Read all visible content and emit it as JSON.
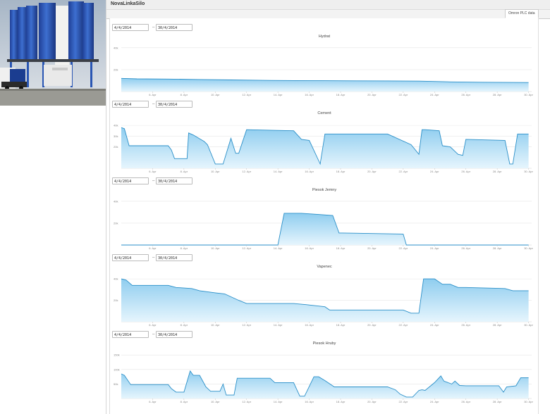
{
  "header": {
    "title": "NovaLinkaSilo"
  },
  "tabs": [
    {
      "label": "Omron PLC data"
    }
  ],
  "photo": {
    "icon": "silo-photo"
  },
  "colors": {
    "line": "#2a8fc8",
    "fill_top": "#8fcdef",
    "fill_bottom": "#e6f5fd",
    "grid": "#e6e6e6"
  },
  "charts": [
    {
      "title": "Hydrat",
      "range": {
        "from": "4/4/2014",
        "to": "30/4/2014"
      }
    },
    {
      "title": "Cement",
      "range": {
        "from": "4/4/2014",
        "to": "30/4/2014"
      }
    },
    {
      "title": "Piesok Jemny",
      "range": {
        "from": "4/4/2014",
        "to": "30/4/2014"
      }
    },
    {
      "title": "Vapenec",
      "range": {
        "from": "4/4/2014",
        "to": "30/4/2014"
      }
    },
    {
      "title": "Piesok Hruby",
      "range": {
        "from": "4/4/2014",
        "to": "30/4/2014"
      }
    }
  ],
  "chart_data": [
    {
      "type": "area",
      "title": "Hydrat",
      "x_ticks": [
        "6. Apr",
        "8. Apr",
        "10. Apr",
        "12. Apr",
        "14. Apr",
        "16. Apr",
        "18. Apr",
        "20. Apr",
        "22. Apr",
        "24. Apr",
        "26. Apr",
        "28. Apr",
        "30. Apr"
      ],
      "y_ticks": [
        "40k",
        "20k"
      ],
      "ylim": [
        0,
        45000
      ],
      "xlim": [
        4,
        30.2
      ],
      "series": [
        {
          "x": [
            4,
            5,
            7,
            9,
            11,
            13,
            15,
            17,
            19,
            21,
            23,
            24,
            25,
            27,
            29,
            30
          ],
          "y": [
            12000,
            11600,
            11400,
            11000,
            10600,
            10200,
            10000,
            9900,
            9800,
            9700,
            9500,
            9200,
            8800,
            8500,
            8300,
            8200
          ]
        }
      ]
    },
    {
      "type": "area",
      "title": "Cement",
      "x_ticks": [
        "6. Apr",
        "8. Apr",
        "10. Apr",
        "12. Apr",
        "14. Apr",
        "16. Apr",
        "18. Apr",
        "20. Apr",
        "22. Apr",
        "24. Apr",
        "26. Apr",
        "28. Apr",
        "30. Apr"
      ],
      "y_ticks": [
        "40k",
        "30k",
        "20k"
      ],
      "ylim": [
        0,
        46000
      ],
      "xlim": [
        4,
        30.2
      ],
      "series": [
        {
          "x": [
            4,
            4.2,
            4.5,
            7,
            7.2,
            7.4,
            8.2,
            8.3,
            8.6,
            9.3,
            9.5,
            10,
            10.2,
            10.5,
            11,
            11.3,
            11.5,
            12,
            15,
            15.5,
            16,
            16.7,
            17,
            21,
            22.5,
            23,
            23.2,
            23.4,
            24.3,
            24.5,
            25,
            25.5,
            25.8,
            26,
            28.5,
            28.8,
            29,
            29.3,
            30
          ],
          "y": [
            38000,
            37000,
            21000,
            21000,
            17000,
            9000,
            9000,
            33000,
            31000,
            25000,
            22000,
            4000,
            4000,
            4000,
            28000,
            14000,
            14000,
            36000,
            35000,
            27000,
            26000,
            4000,
            32000,
            32000,
            22000,
            13000,
            36000,
            36000,
            35000,
            21000,
            20000,
            13000,
            12000,
            27000,
            26000,
            4000,
            4000,
            32000,
            32000
          ]
        }
      ]
    },
    {
      "type": "area",
      "title": "Piesok Jemny",
      "x_ticks": [
        "6. Apr",
        "8. Apr",
        "10. Apr",
        "12. Apr",
        "14. Apr",
        "16. Apr",
        "18. Apr",
        "20. Apr",
        "22. Apr",
        "24. Apr",
        "26. Apr",
        "28. Apr",
        "30. Apr"
      ],
      "y_ticks": [
        "40k",
        "20k"
      ],
      "ylim": [
        0,
        45000
      ],
      "xlim": [
        4,
        30.2
      ],
      "series": [
        {
          "x": [
            4,
            14,
            14.4,
            15.5,
            16.5,
            17.5,
            17.9,
            18.1,
            22,
            22.2,
            30
          ],
          "y": [
            0,
            0,
            29000,
            29000,
            28000,
            27000,
            11000,
            11000,
            10000,
            0,
            0
          ]
        }
      ]
    },
    {
      "type": "area",
      "title": "Vapenec",
      "x_ticks": [
        "6. Apr",
        "8. Apr",
        "10. Apr",
        "12. Apr",
        "14. Apr",
        "16. Apr",
        "18. Apr",
        "20. Apr",
        "22. Apr",
        "24. Apr",
        "26. Apr",
        "28. Apr",
        "30. Apr"
      ],
      "y_ticks": [
        "40k",
        "20k"
      ],
      "ylim": [
        0,
        46000
      ],
      "xlim": [
        4,
        30.2
      ],
      "series": [
        {
          "x": [
            4,
            4.3,
            4.7,
            7,
            7.5,
            8.5,
            9,
            10,
            10.6,
            11.5,
            12,
            15,
            15.8,
            17,
            17.3,
            18.5,
            22,
            22.5,
            23,
            23.3,
            24,
            24.5,
            25,
            25.5,
            26,
            28.5,
            29,
            30
          ],
          "y": [
            40000,
            39000,
            34000,
            34000,
            32000,
            31000,
            29000,
            27000,
            26000,
            20000,
            17000,
            17000,
            16000,
            14000,
            11000,
            11000,
            11000,
            8000,
            8000,
            40000,
            40000,
            35000,
            35000,
            32000,
            32000,
            31000,
            29000,
            29000
          ]
        }
      ]
    },
    {
      "type": "area",
      "title": "Piesok Hruby",
      "x_ticks": [
        "6. Apr",
        "8. Apr",
        "10. Apr",
        "12. Apr",
        "14. Apr",
        "16. Apr",
        "18. Apr",
        "20. Apr",
        "22. Apr",
        "24. Apr",
        "26. Apr",
        "28. Apr",
        "30. Apr"
      ],
      "y_ticks": [
        "150k",
        "100k",
        "50k"
      ],
      "ylim": [
        0,
        170000
      ],
      "xlim": [
        4,
        30.2
      ],
      "series": [
        {
          "x": [
            4,
            4.2,
            4.6,
            7,
            7.2,
            7.5,
            8,
            8.4,
            8.6,
            9,
            9.4,
            9.7,
            10.3,
            10.5,
            10.7,
            11.2,
            11.4,
            11.6,
            13.5,
            13.8,
            15,
            15.4,
            15.7,
            16.3,
            16.6,
            17,
            17.6,
            21,
            21.5,
            21.8,
            22.2,
            22.6,
            23,
            23.2,
            23.4,
            24,
            24.4,
            24.6,
            25.1,
            25.3,
            25.6,
            26,
            26.3,
            28.1,
            28.4,
            28.6,
            29.2,
            29.5,
            30
          ],
          "y": [
            85000,
            80000,
            48000,
            48000,
            34000,
            22000,
            22000,
            95000,
            80000,
            80000,
            40000,
            25000,
            25000,
            50000,
            12000,
            12000,
            70000,
            70000,
            70000,
            55000,
            55000,
            8000,
            8000,
            75000,
            75000,
            62000,
            40000,
            40000,
            30000,
            15000,
            5000,
            5000,
            28000,
            30000,
            28000,
            55000,
            78000,
            60000,
            50000,
            60000,
            45000,
            44000,
            44000,
            44000,
            22000,
            40000,
            44000,
            72000,
            72000
          ]
        }
      ]
    }
  ]
}
